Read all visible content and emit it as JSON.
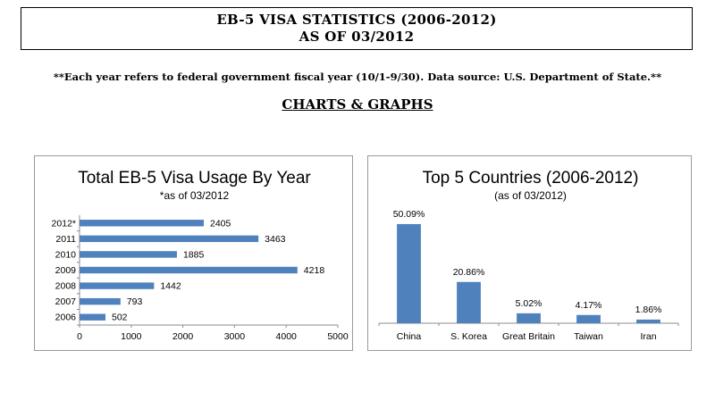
{
  "header": {
    "title_line1": "EB-5 VISA STATISTICS (2006-2012)",
    "title_line2": "AS OF 03/2012"
  },
  "note": "**Each year refers to federal government fiscal year (10/1-9/30).  Data source: U.S. Department of State.**",
  "section_heading": "CHARTS & GRAPHS",
  "chart_data": [
    {
      "type": "bar",
      "orientation": "horizontal",
      "title": "Total EB-5 Visa Usage By Year",
      "subtitle": "*as of 03/2012",
      "categories": [
        "2006",
        "2007",
        "2008",
        "2009",
        "2010",
        "2011",
        "2012*"
      ],
      "values": [
        502,
        793,
        1442,
        4218,
        1885,
        3463,
        2405
      ],
      "value_labels": [
        "502",
        "793",
        "1442",
        "4218",
        "1885",
        "3463",
        "2405"
      ],
      "xlim": [
        0,
        5000
      ],
      "xticks": [
        "0",
        "1000",
        "2000",
        "3000",
        "4000",
        "5000"
      ],
      "color": "#4f81bd",
      "grid": false,
      "legend": false
    },
    {
      "type": "bar",
      "orientation": "vertical",
      "title": "Top 5 Countries (2006-2012)",
      "subtitle": "(as of 03/2012)",
      "categories": [
        "China",
        "S. Korea",
        "Great Britain",
        "Taiwan",
        "Iran"
      ],
      "values": [
        50.09,
        20.86,
        5.02,
        4.17,
        1.86
      ],
      "value_labels": [
        "50.09%",
        "20.86%",
        "5.02%",
        "4.17%",
        "1.86%"
      ],
      "ylim": [
        0,
        60
      ],
      "color": "#4f81bd",
      "grid": false,
      "legend": false
    }
  ]
}
